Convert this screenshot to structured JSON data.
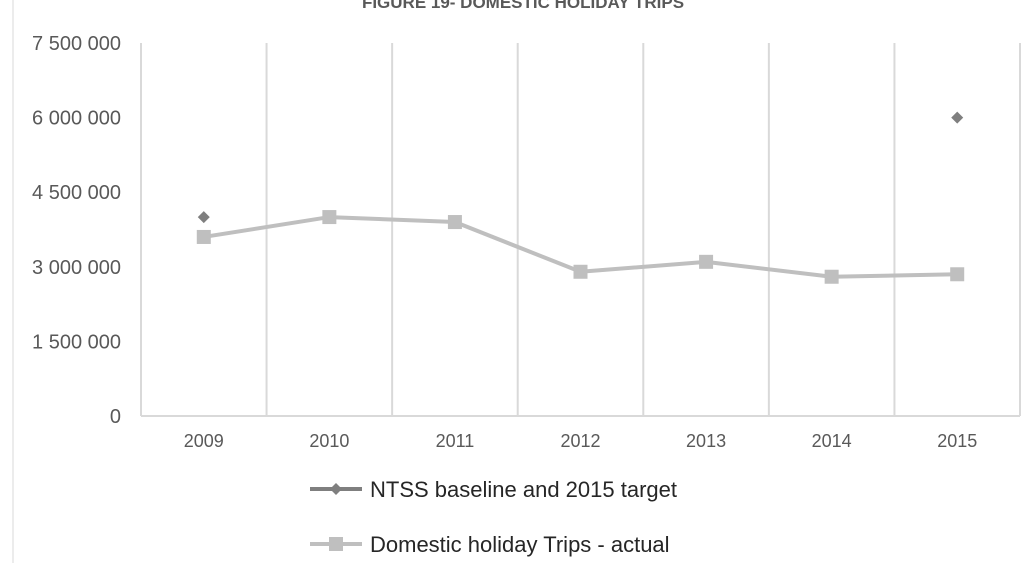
{
  "chart_data": {
    "type": "line",
    "title": "FIGURE 19- DOMESTIC HOLIDAY TRIPS",
    "xlabel": "",
    "ylabel": "",
    "categories": [
      "2009",
      "2010",
      "2011",
      "2012",
      "2013",
      "2014",
      "2015"
    ],
    "ylim": [
      0,
      7500000
    ],
    "yticks": [
      0,
      1500000,
      3000000,
      4500000,
      6000000,
      7500000
    ],
    "ytick_labels": [
      "0",
      "1 500 000",
      "3 000 000",
      "4 500 000",
      "6 000 000",
      "7 500 000"
    ],
    "grid": "vertical",
    "legend_position": "bottom",
    "series": [
      {
        "name": "NTSS baseline and 2015 target",
        "marker": "diamond",
        "color": "#7f7f7f",
        "values": [
          4000000,
          null,
          null,
          null,
          null,
          null,
          6000000
        ]
      },
      {
        "name": "Domestic holiday Trips - actual",
        "marker": "square",
        "color": "#bfbfbf",
        "values": [
          3600000,
          4000000,
          3900000,
          2900000,
          3100000,
          2800000,
          2850000
        ]
      }
    ]
  }
}
